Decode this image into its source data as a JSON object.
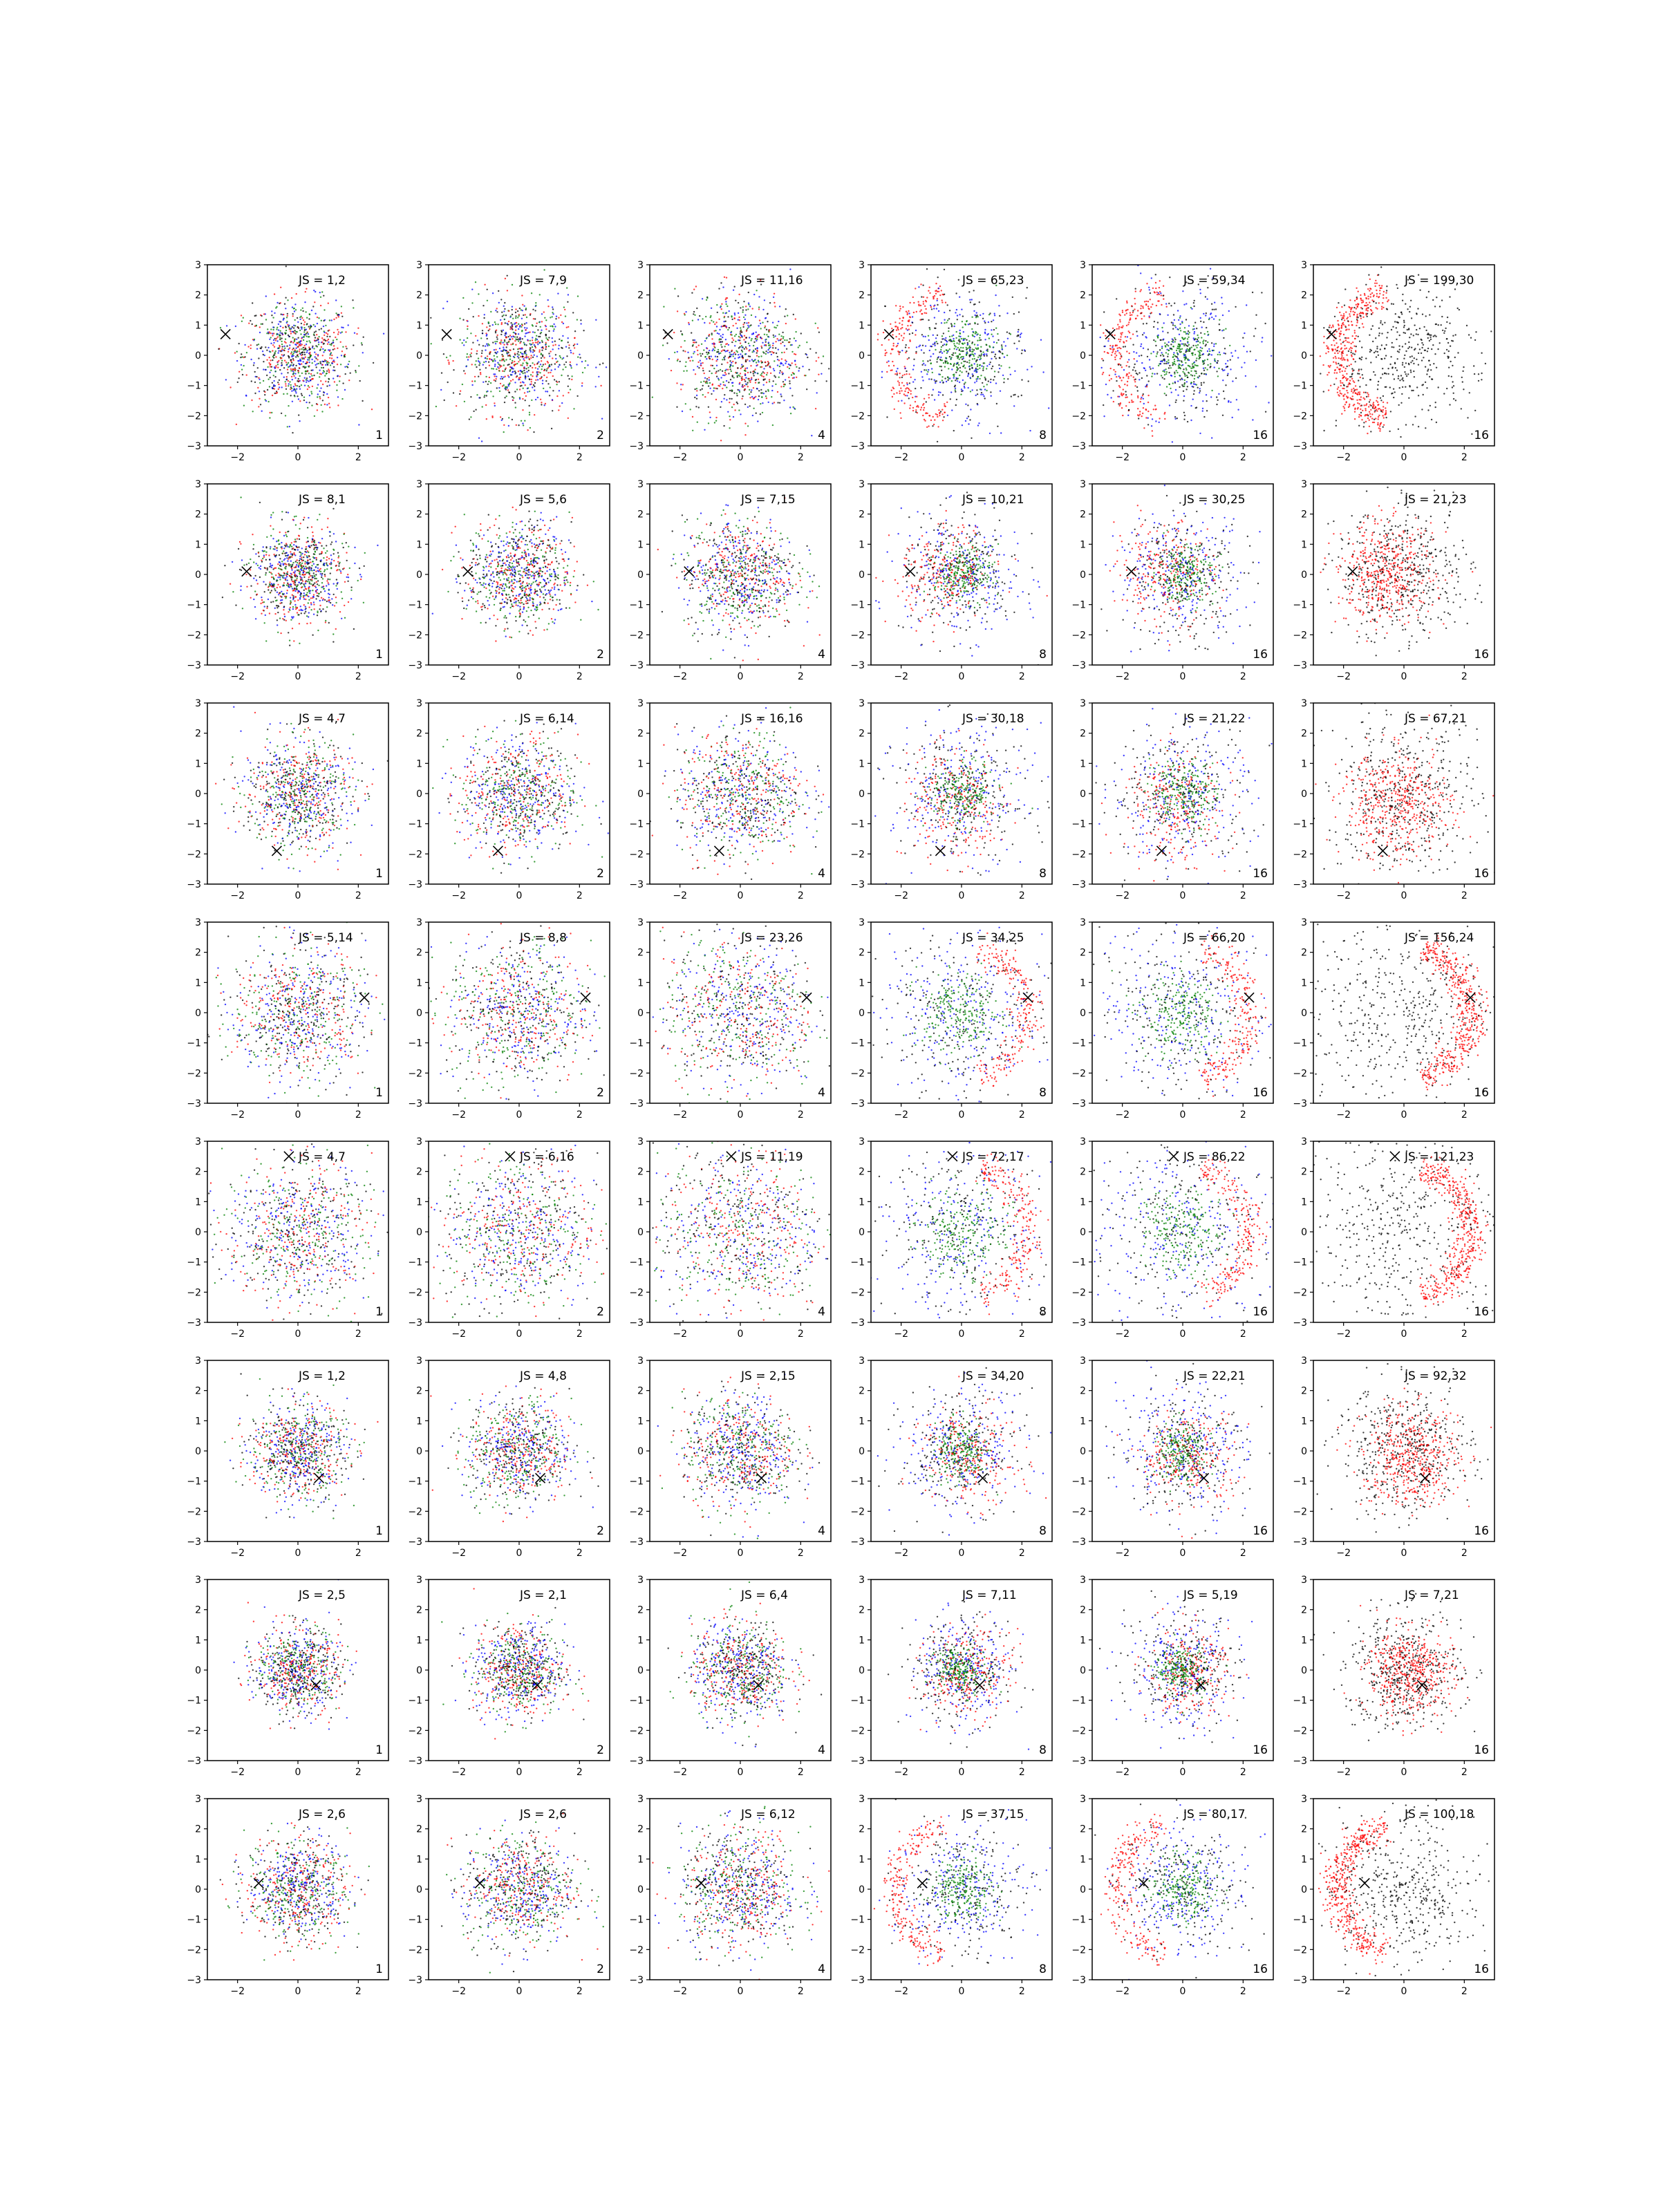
{
  "figure": {
    "rows": 8,
    "cols": 6
  },
  "chart_data": {
    "type": "scatter",
    "xlim": [
      -3,
      3
    ],
    "ylim": [
      -3,
      3
    ],
    "xticks": [
      -2,
      0,
      2
    ],
    "yticks": [
      3,
      2,
      1,
      0,
      -1,
      -2,
      -3
    ],
    "grid": false,
    "legend": "none",
    "colors": {
      "red": "#ff0000",
      "green": "#008000",
      "blue": "#0000ff",
      "black": "#000000"
    },
    "marker_symbol": "×",
    "rows": [
      {
        "marker": [
          -2.4,
          0.7
        ],
        "std": 0.9,
        "js": [
          "JS = 1,2",
          "JS = 7,9",
          "JS = 11,16",
          "JS = 65,23",
          "JS = 59,34",
          "JS = 199,30"
        ],
        "k": [
          "1",
          "2",
          "4",
          "8",
          "16",
          "16"
        ],
        "ring": "left"
      },
      {
        "marker": [
          -1.7,
          0.1
        ],
        "std": 0.8,
        "js": [
          "JS = 8,1",
          "JS = 5,6",
          "JS = 7,15",
          "JS = 10,21",
          "JS = 30,25",
          "JS = 21,23"
        ],
        "k": [
          "1",
          "2",
          "4",
          "8",
          "16",
          "16"
        ],
        "ring": "none"
      },
      {
        "marker": [
          -0.7,
          -1.9
        ],
        "std": 0.9,
        "js": [
          "JS = 4,7",
          "JS = 6,14",
          "JS = 16,16",
          "JS = 30,18",
          "JS = 21,22",
          "JS = 67,21"
        ],
        "k": [
          "1",
          "2",
          "4",
          "8",
          "16",
          "16"
        ],
        "ring": "none"
      },
      {
        "marker": [
          2.2,
          0.5
        ],
        "std": 1.1,
        "js": [
          "JS = 5,14",
          "JS = 8,8",
          "JS = 23,26",
          "JS = 34,25",
          "JS = 66,20",
          "JS = 156,24"
        ],
        "k": [
          "1",
          "2",
          "4",
          "8",
          "16",
          "16"
        ],
        "ring": "right"
      },
      {
        "marker": [
          -0.3,
          2.5
        ],
        "std": 1.2,
        "js": [
          "JS = 4,7",
          "JS = 6,16",
          "JS = 11,19",
          "JS = 72,17",
          "JS = 86,22",
          "JS = 121,23"
        ],
        "k": [
          "1",
          "2",
          "4",
          "8",
          "16",
          "16"
        ],
        "ring": "right"
      },
      {
        "marker": [
          0.7,
          -0.9
        ],
        "std": 0.8,
        "js": [
          "JS = 1,2",
          "JS = 4,8",
          "JS = 2,15",
          "JS = 34,20",
          "JS = 22,21",
          "JS = 92,32"
        ],
        "k": [
          "1",
          "2",
          "4",
          "8",
          "16",
          "16"
        ],
        "ring": "none"
      },
      {
        "marker": [
          0.6,
          -0.5
        ],
        "std": 0.7,
        "js": [
          "JS = 2,5",
          "JS = 2,1",
          "JS = 6,4",
          "JS = 7,11",
          "JS = 5,19",
          "JS = 7,21"
        ],
        "k": [
          "1",
          "2",
          "4",
          "8",
          "16",
          "16"
        ],
        "ring": "none"
      },
      {
        "marker": [
          -1.3,
          0.2
        ],
        "std": 0.85,
        "js": [
          "JS = 2,6",
          "JS = 2,6",
          "JS = 6,12",
          "JS = 37,15",
          "JS = 80,17",
          "JS = 100,18"
        ],
        "k": [
          "1",
          "2",
          "4",
          "8",
          "16",
          "16"
        ],
        "ring": "left"
      }
    ]
  }
}
